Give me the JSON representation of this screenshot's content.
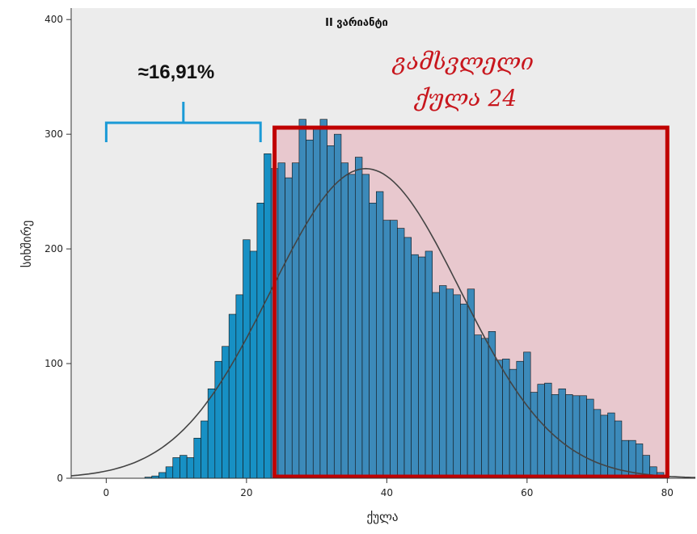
{
  "chart_data": {
    "type": "bar",
    "subtype": "histogram",
    "title": "II ვარიანტი",
    "xlabel": "ქულა",
    "ylabel": "სიხშირე",
    "xlim": [
      -5,
      84
    ],
    "ylim": [
      0,
      410
    ],
    "xticks": [
      0,
      20,
      40,
      60,
      80
    ],
    "yticks": [
      0,
      100,
      200,
      300,
      400
    ],
    "grid": false,
    "bin_width": 1,
    "bins": {
      "x": [
        6,
        7,
        8,
        9,
        10,
        11,
        12,
        13,
        14,
        15,
        16,
        17,
        18,
        19,
        20,
        21,
        22,
        23,
        24,
        25,
        26,
        27,
        28,
        29,
        30,
        31,
        32,
        33,
        34,
        35,
        36,
        37,
        38,
        39,
        40,
        41,
        42,
        43,
        44,
        45,
        46,
        47,
        48,
        49,
        50,
        51,
        52,
        53,
        54,
        55,
        56,
        57,
        58,
        59,
        60,
        61,
        62,
        63,
        64,
        65,
        66,
        67,
        68,
        69,
        70,
        71,
        72,
        73,
        74,
        75,
        76,
        77,
        78,
        79
      ],
      "values": [
        1,
        2,
        5,
        10,
        18,
        20,
        18,
        35,
        50,
        78,
        102,
        115,
        143,
        160,
        208,
        198,
        240,
        283,
        270,
        275,
        262,
        275,
        313,
        295,
        305,
        313,
        290,
        300,
        275,
        265,
        280,
        265,
        240,
        250,
        225,
        225,
        218,
        210,
        195,
        193,
        198,
        162,
        168,
        165,
        160,
        152,
        165,
        125,
        122,
        128,
        103,
        104,
        95,
        102,
        110,
        75,
        82,
        83,
        73,
        78,
        73,
        72,
        72,
        69,
        60,
        55,
        57,
        50,
        33,
        33,
        30,
        20,
        10,
        5
      ]
    },
    "normal_curve": {
      "mean": 37,
      "sd": 13.5,
      "peak": 270
    },
    "annotations": {
      "below_pass_share": "≈16,91%",
      "below_pass_range": [
        0,
        22
      ],
      "pass_label_line1": "გამსვლელი",
      "pass_label_line2": "ქულა 24",
      "pass_region": [
        24,
        80
      ]
    },
    "colors": {
      "plot_bg": "#ececec",
      "bar_below": "#1790c4",
      "bar_pass": "#3c8aba",
      "bar_stroke": "#111111",
      "pass_fill": "#e8c8ce",
      "pass_border": "#c00000",
      "bracket": "#1a9ad6",
      "curve": "#444444"
    }
  }
}
